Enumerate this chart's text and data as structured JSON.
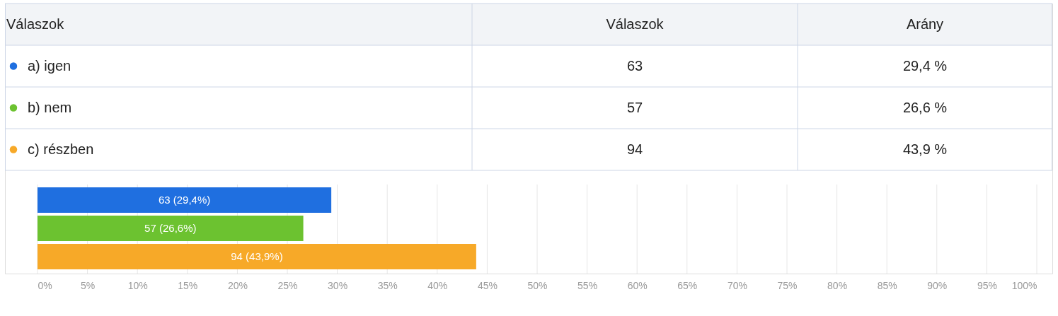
{
  "chart_data": {
    "type": "bar",
    "orientation": "horizontal",
    "legend_title": "Válaszok",
    "categories": [
      null,
      null,
      null
    ],
    "series": [
      {
        "name": "a) igen",
        "color": "#1f6fe0",
        "values": [
          29.4,
          null,
          null
        ],
        "value_labels": [
          "63 (29,4%)",
          null,
          null
        ]
      },
      {
        "name": "b) nem",
        "color": "#6cc230",
        "values": [
          null,
          26.6,
          null
        ],
        "value_labels": [
          null,
          "57 (26,6%)",
          null
        ]
      },
      {
        "name": "c) részben",
        "color": "#f7a928",
        "values": [
          null,
          null,
          43.9
        ],
        "value_labels": [
          null,
          null,
          "94 (43,9%)"
        ]
      }
    ],
    "annotations": [
      "Válaszok",
      "Arány",
      "63",
      "29,4 %",
      "57",
      "26,6 %",
      "94",
      "43,9 %"
    ],
    "xlim": [
      0,
      100
    ],
    "xticks": [
      {
        "value": 0,
        "label": "0%"
      },
      {
        "value": 5,
        "label": "5%"
      },
      {
        "value": 10,
        "label": "10%"
      },
      {
        "value": 15,
        "label": "15%"
      },
      {
        "value": 20,
        "label": "20%"
      },
      {
        "value": 25,
        "label": "25%"
      },
      {
        "value": 30,
        "label": "30%"
      },
      {
        "value": 35,
        "label": "35%"
      },
      {
        "value": 40,
        "label": "40%"
      },
      {
        "value": 45,
        "label": "45%"
      },
      {
        "value": 50,
        "label": "50%"
      },
      {
        "value": 55,
        "label": "55%"
      },
      {
        "value": 60,
        "label": "60%"
      },
      {
        "value": 65,
        "label": "65%"
      },
      {
        "value": 70,
        "label": "70%"
      },
      {
        "value": 75,
        "label": "75%"
      },
      {
        "value": 80,
        "label": "80%"
      },
      {
        "value": 85,
        "label": "85%"
      },
      {
        "value": 90,
        "label": "90%"
      },
      {
        "value": 95,
        "label": "95%"
      },
      {
        "value": 100,
        "label": "100%"
      }
    ],
    "grid": "x",
    "legend": "top left"
  }
}
